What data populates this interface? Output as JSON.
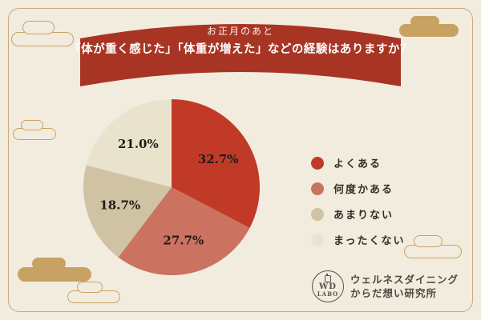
{
  "banner": {
    "line1": "お正月のあと",
    "line2": "「体が重く感じた」「体重が増えた」などの経験はありますか？"
  },
  "chart_data": {
    "type": "pie",
    "title": "お正月のあと「体が重く感じた」「体重が増えた」などの経験はありますか？",
    "labels": [
      "よくある",
      "何度かある",
      "あまりない",
      "まったくない"
    ],
    "values": [
      32.7,
      27.7,
      18.7,
      21.0
    ],
    "percent_labels": [
      "32.7%",
      "27.7%",
      "18.7%",
      "21.0%"
    ],
    "colors": [
      "#c13a27",
      "#cb7260",
      "#d0c3a3",
      "#e9e2cc"
    ],
    "start_angle_deg": 0,
    "direction": "clockwise",
    "legend_position": "right",
    "banner_color": "#a83524"
  },
  "logo": {
    "circle_line1": "WD",
    "circle_line2": "LABO",
    "org_name": "ウェルネスダイニング",
    "org_sub": "からだ想い研究所"
  }
}
